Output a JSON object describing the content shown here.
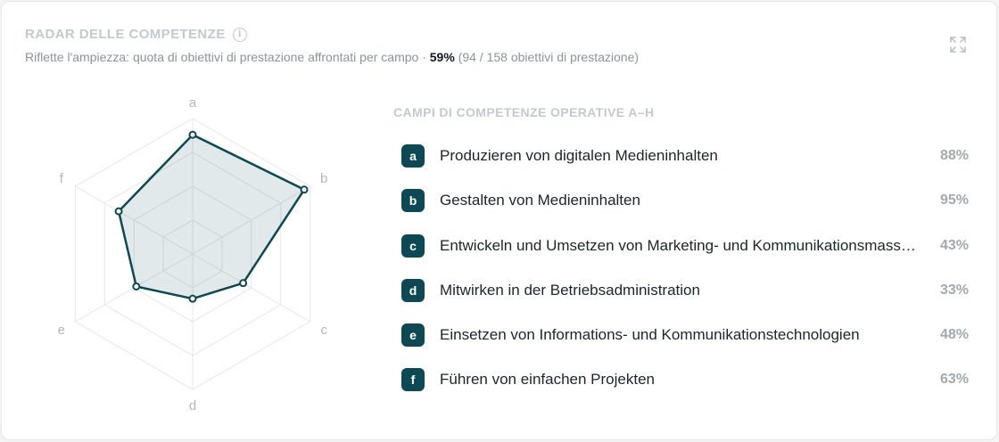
{
  "header": {
    "title": "RADAR DELLE COMPETENZE",
    "subtitle_prefix": "Riflette l'ampiezza: quota di obiettivi di prestazione affrontati per campo ·",
    "subtitle_pct": "59%",
    "subtitle_suffix": "(94 / 158 obiettivi di prestazione)"
  },
  "list": {
    "title": "CAMPI DI COMPETENZE OPERATIVE A–H",
    "items": [
      {
        "key": "a",
        "label": "Produzieren von digitalen Medieninhalten",
        "value": "88%"
      },
      {
        "key": "b",
        "label": "Gestalten von Medieninhalten",
        "value": "95%"
      },
      {
        "key": "c",
        "label": "Entwickeln und Umsetzen von Marketing- und Kommunikationsmassnahmen",
        "value": "43%"
      },
      {
        "key": "d",
        "label": "Mitwirken in der Betriebsadministration",
        "value": "33%"
      },
      {
        "key": "e",
        "label": "Einsetzen von Informations- und Kommunikationstechnologien",
        "value": "48%"
      },
      {
        "key": "f",
        "label": "Führen von einfachen Projekten",
        "value": "63%"
      }
    ]
  },
  "chart_data": {
    "type": "radar",
    "axes": [
      "a",
      "b",
      "c",
      "d",
      "e",
      "f"
    ],
    "values": [
      88,
      95,
      43,
      33,
      48,
      63
    ],
    "range": [
      0,
      100
    ],
    "rings": 4,
    "colors": {
      "line": "#0e4853",
      "fill": "#0e4853",
      "grid": "#e4e7e9"
    }
  },
  "icons": {
    "info": "info-icon",
    "expand": "expand-icon"
  }
}
